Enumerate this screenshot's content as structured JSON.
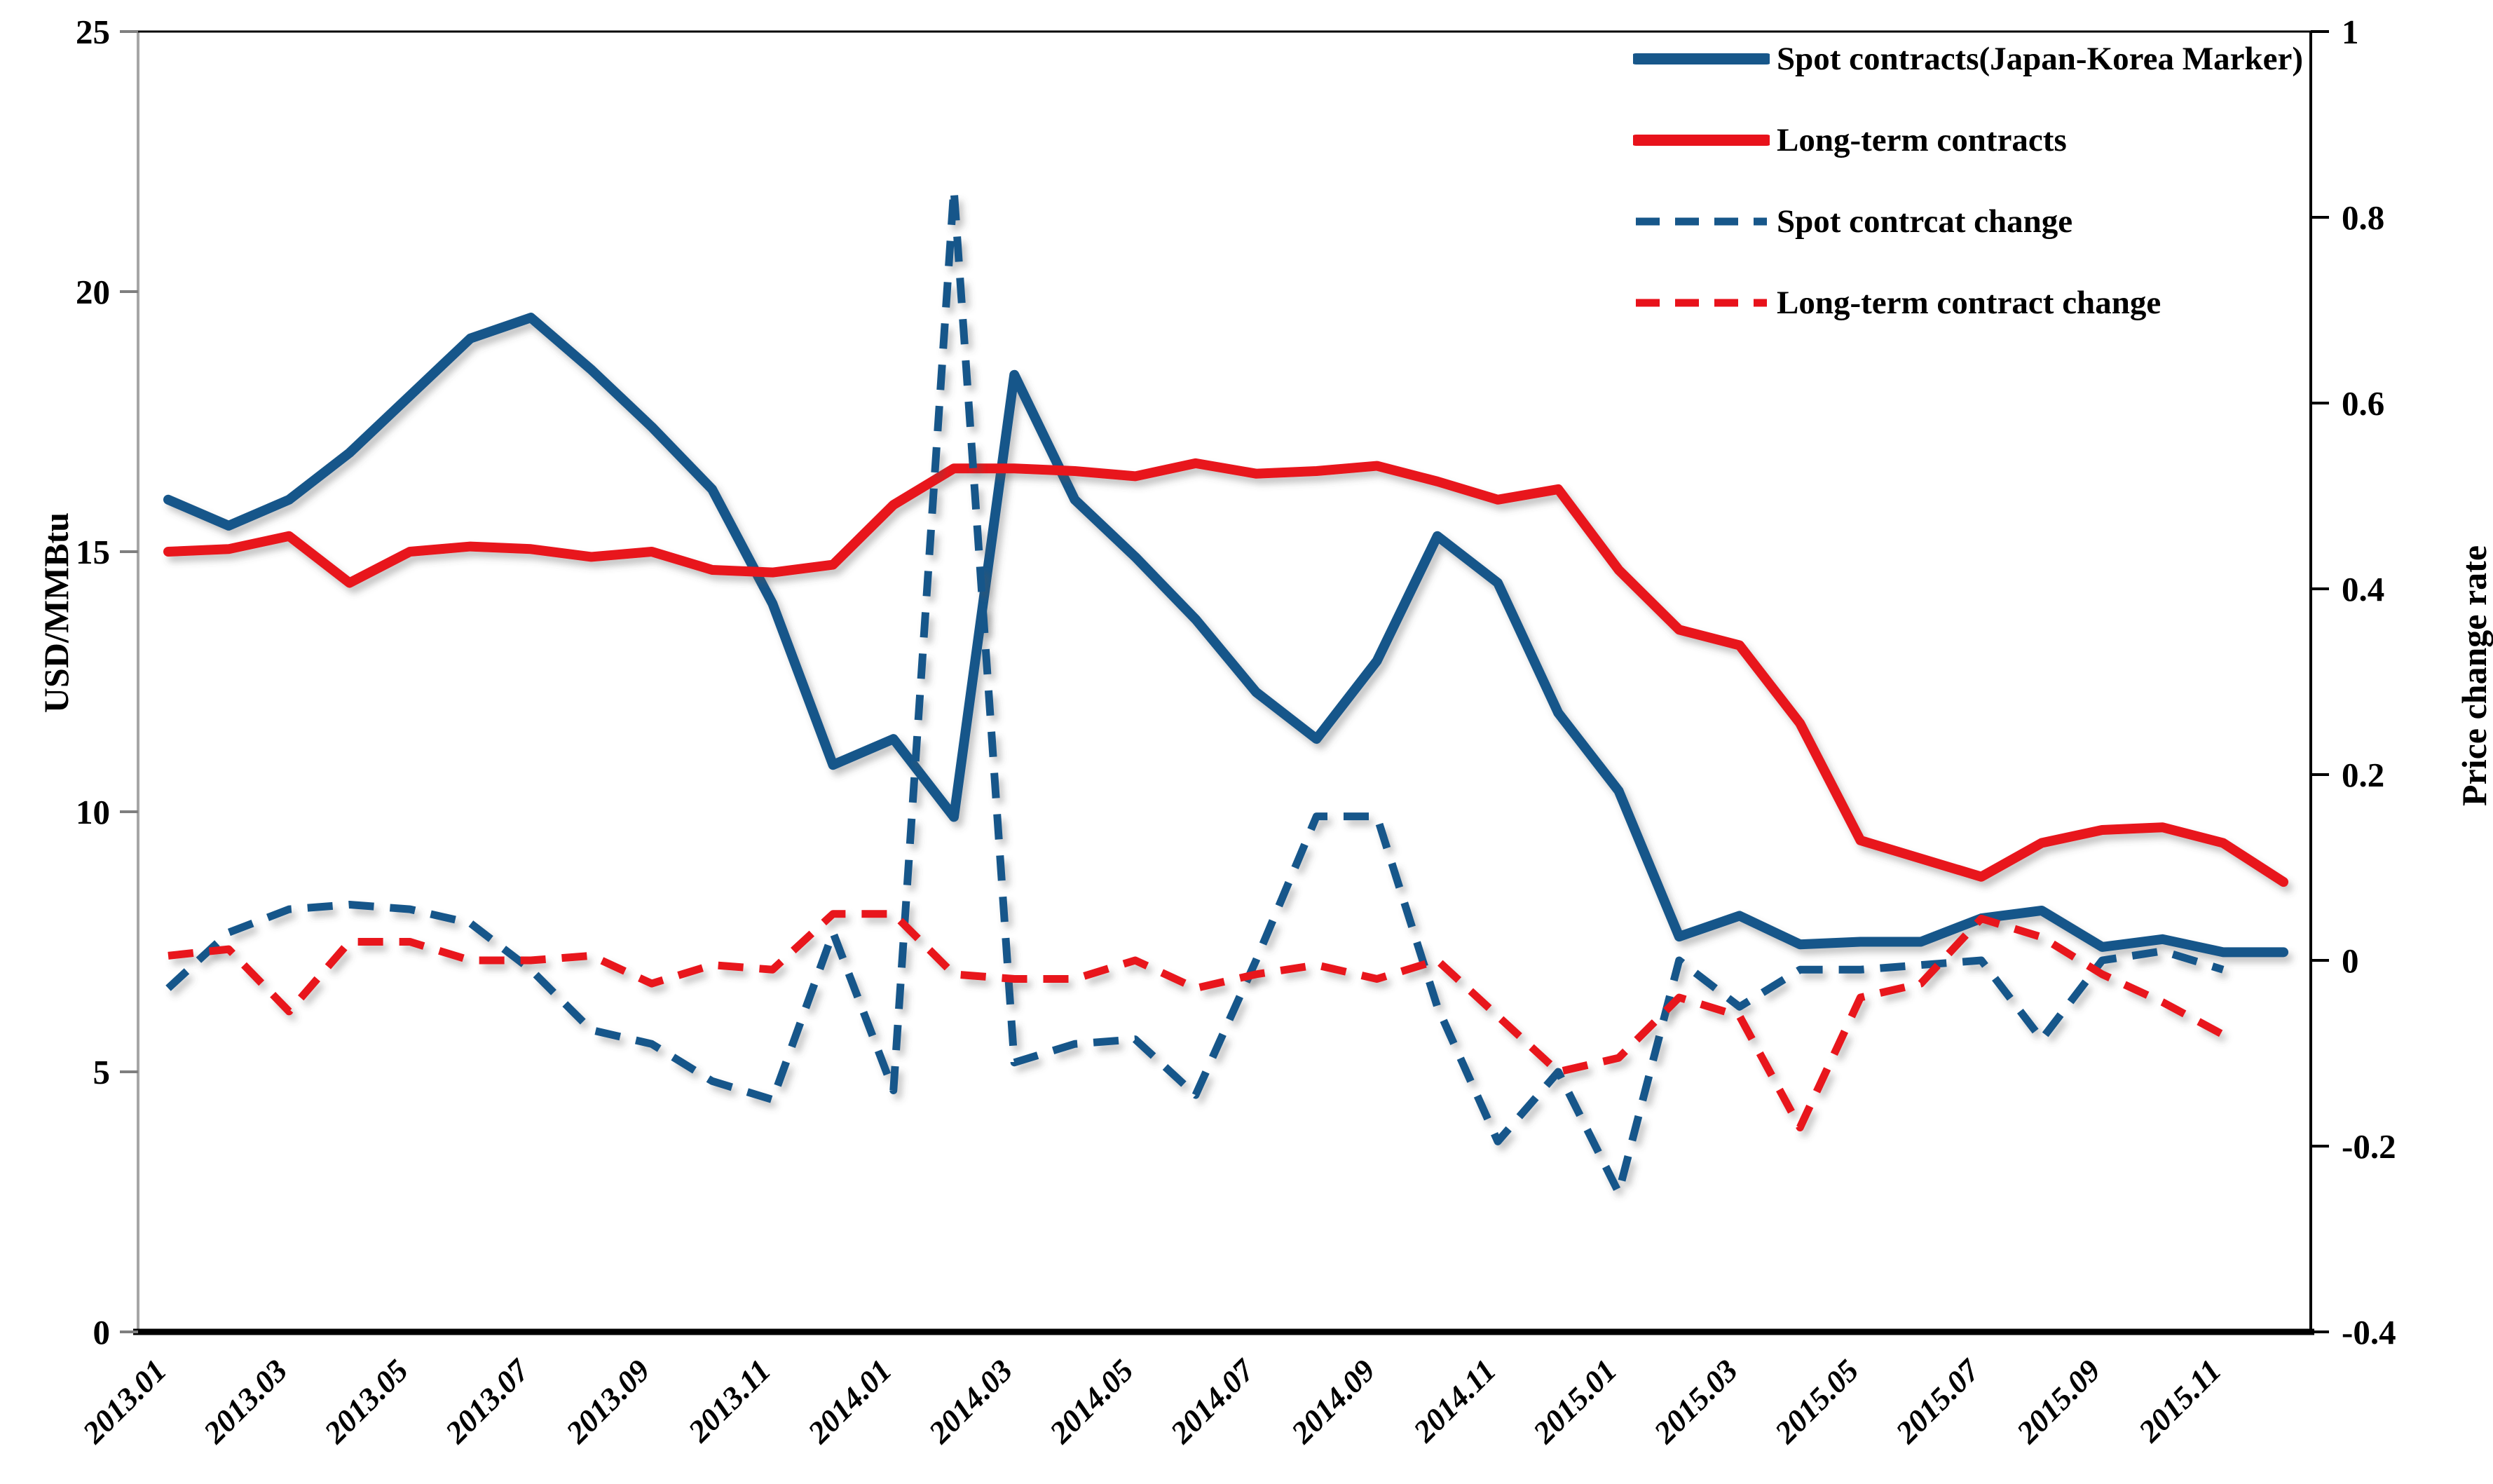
{
  "chart_data": {
    "type": "line",
    "title": "",
    "x_categories": [
      "2013.01",
      "2013.02",
      "2013.03",
      "2013.04",
      "2013.05",
      "2013.06",
      "2013.07",
      "2013.08",
      "2013.09",
      "2013.10",
      "2013.11",
      "2013.12",
      "2014.01",
      "2014.02",
      "2014.03",
      "2014.04",
      "2014.05",
      "2014.06",
      "2014.07",
      "2014.08",
      "2014.09",
      "2014.10",
      "2014.11",
      "2014.12",
      "2015.01",
      "2015.02",
      "2015.03",
      "2015.04",
      "2015.05",
      "2015.06",
      "2015.07",
      "2015.08",
      "2015.09",
      "2015.10",
      "2015.11",
      "2015.12"
    ],
    "x_tick_labels": [
      "2013.01",
      "2013.03",
      "2013.05",
      "2013.07",
      "2013.09",
      "2013.11",
      "2014.01",
      "2014.03",
      "2014.05",
      "2014.07",
      "2014.09",
      "2014.11",
      "2015.01",
      "2015.03",
      "2015.05",
      "2015.07",
      "2015.09",
      "2015.11"
    ],
    "left_axis": {
      "label": "USD/MMBtu",
      "ticks": [
        "0",
        "5",
        "10",
        "15",
        "20",
        "25"
      ],
      "range": [
        0,
        25
      ]
    },
    "right_axis": {
      "label": "Price change rate",
      "ticks": [
        "1",
        "0.8",
        "0.6",
        "0.4",
        "0.2",
        "0",
        "-0.2",
        "-0.4"
      ],
      "range": [
        -0.4,
        1
      ]
    },
    "grid": false,
    "legend_position": "top-right-inside",
    "series": [
      {
        "name": "Spot contracts(Japan-Korea Marker)",
        "axis": "left",
        "style": "solid",
        "color": "#17578A",
        "values": [
          16.0,
          15.5,
          16.0,
          16.9,
          18.0,
          19.1,
          19.5,
          18.5,
          17.4,
          16.2,
          14.0,
          10.9,
          11.4,
          9.9,
          18.4,
          16.0,
          14.9,
          13.7,
          12.3,
          11.4,
          12.9,
          15.3,
          14.4,
          11.9,
          10.4,
          7.6,
          8.0,
          7.45,
          7.5,
          7.5,
          7.95,
          8.1,
          7.4,
          7.55,
          7.3,
          7.3
        ]
      },
      {
        "name": "Long-term contracts",
        "axis": "left",
        "style": "solid",
        "color": "#E8121B",
        "values": [
          15.0,
          15.05,
          15.3,
          14.4,
          15.0,
          15.1,
          15.05,
          14.9,
          15.0,
          14.65,
          14.6,
          14.75,
          15.9,
          16.6,
          16.6,
          16.55,
          16.45,
          16.7,
          16.5,
          16.55,
          16.65,
          16.35,
          16.0,
          16.2,
          14.65,
          13.5,
          13.2,
          11.7,
          9.45,
          9.1,
          8.75,
          9.4,
          9.65,
          9.7,
          9.4,
          8.65
        ]
      },
      {
        "name": "Spot contrcat change",
        "axis": "right",
        "style": "dashed",
        "color": "#17578A",
        "values": [
          -0.03,
          0.03,
          0.055,
          0.06,
          0.055,
          0.04,
          -0.01,
          -0.075,
          -0.09,
          -0.13,
          -0.15,
          0.03,
          -0.14,
          0.83,
          -0.11,
          -0.09,
          -0.085,
          -0.145,
          0.0,
          0.155,
          0.155,
          -0.05,
          -0.195,
          -0.12,
          -0.25,
          0.0,
          -0.05,
          -0.01,
          -0.01,
          -0.005,
          0.0,
          -0.085,
          0.0,
          0.01,
          -0.01,
          null
        ]
      },
      {
        "name": "Long-term contract change",
        "axis": "right",
        "style": "dashed",
        "color": "#E8121B",
        "values": [
          0.005,
          0.012,
          -0.055,
          0.02,
          0.02,
          0.0,
          0.0,
          0.005,
          -0.025,
          -0.005,
          -0.01,
          0.05,
          0.05,
          -0.015,
          -0.02,
          -0.02,
          0.0,
          -0.03,
          -0.015,
          -0.005,
          -0.02,
          0.0,
          -0.06,
          -0.12,
          -0.105,
          -0.04,
          -0.06,
          -0.18,
          -0.04,
          -0.025,
          0.045,
          0.025,
          -0.015,
          -0.045,
          -0.08,
          null
        ]
      }
    ]
  }
}
